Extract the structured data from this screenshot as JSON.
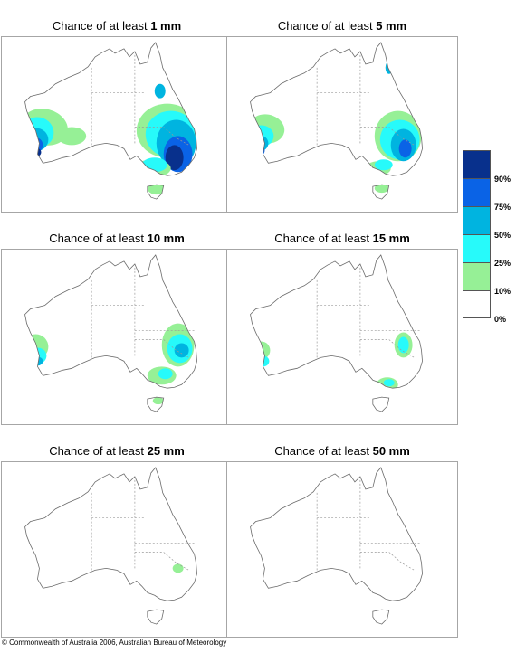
{
  "panels": [
    {
      "prefix": "Chance of at least ",
      "amount": "1 mm"
    },
    {
      "prefix": "Chance of at least ",
      "amount": "5 mm"
    },
    {
      "prefix": "Chance of at least ",
      "amount": "10 mm"
    },
    {
      "prefix": "Chance of at least ",
      "amount": "15 mm"
    },
    {
      "prefix": "Chance of at least ",
      "amount": "25 mm"
    },
    {
      "prefix": "Chance of at least ",
      "amount": "50 mm"
    }
  ],
  "legend": {
    "colors": [
      "#08308c",
      "#0a63e6",
      "#00b4e0",
      "#27fafa",
      "#96f096",
      "#ffffff"
    ],
    "labels": [
      "90%",
      "75%",
      "50%",
      "25%",
      "10%",
      "0%"
    ]
  },
  "copyright": "© Commonwealth of Australia 2006, Australian Bureau of Meteorology"
}
